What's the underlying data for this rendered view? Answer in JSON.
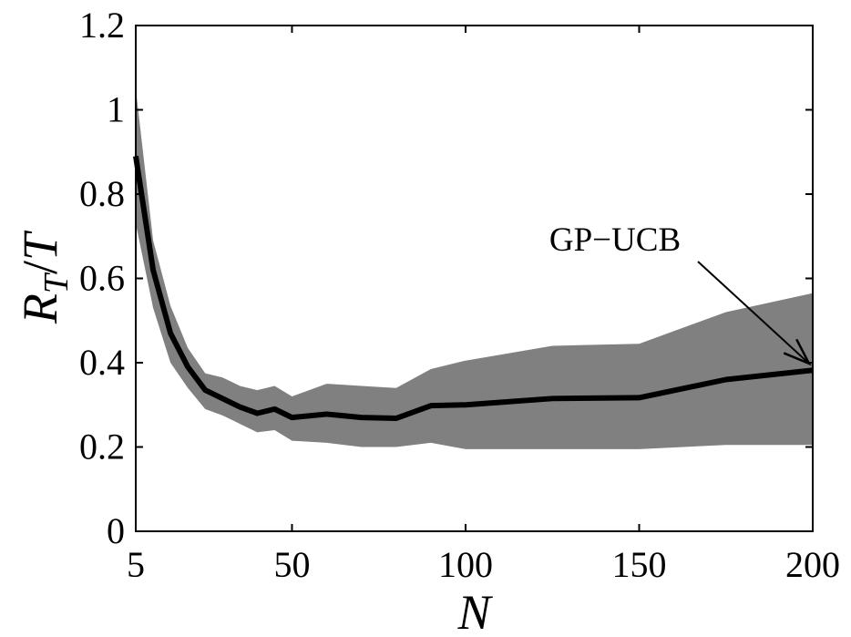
{
  "chart_data": {
    "type": "line",
    "title": "",
    "xlabel": "N",
    "ylabel": "R_T/T",
    "xlim": [
      5,
      200
    ],
    "ylim": [
      0,
      1.2
    ],
    "xticks": [
      5,
      50,
      100,
      150,
      200
    ],
    "yticks": [
      0,
      0.2,
      0.4,
      0.6,
      0.8,
      1,
      1.2
    ],
    "xtick_labels": [
      "5",
      "50",
      "100",
      "150",
      "200"
    ],
    "ytick_labels": [
      "0",
      "0.2",
      "0.4",
      "0.6",
      "0.8",
      "1",
      "1.2"
    ],
    "grid": false,
    "series": [
      {
        "name": "GP-UCB",
        "x": [
          5,
          10,
          15,
          20,
          25,
          30,
          35,
          40,
          45,
          50,
          60,
          70,
          80,
          90,
          100,
          125,
          150,
          175,
          200
        ],
        "y": [
          0.89,
          0.62,
          0.47,
          0.39,
          0.335,
          0.315,
          0.295,
          0.28,
          0.29,
          0.27,
          0.278,
          0.27,
          0.268,
          0.298,
          0.3,
          0.315,
          0.317,
          0.36,
          0.382
        ],
        "lower": [
          0.73,
          0.53,
          0.4,
          0.34,
          0.29,
          0.275,
          0.255,
          0.235,
          0.24,
          0.215,
          0.21,
          0.2,
          0.2,
          0.21,
          0.195,
          0.195,
          0.195,
          0.205,
          0.205
        ],
        "upper": [
          1.05,
          0.69,
          0.535,
          0.435,
          0.375,
          0.365,
          0.345,
          0.335,
          0.345,
          0.32,
          0.35,
          0.345,
          0.34,
          0.385,
          0.405,
          0.44,
          0.445,
          0.52,
          0.565
        ],
        "line_color": "#000000",
        "band_color": "#808080"
      }
    ],
    "annotations": [
      {
        "text": "GP−UCB",
        "arrow_to": [
          200,
          0.385
        ]
      }
    ]
  }
}
